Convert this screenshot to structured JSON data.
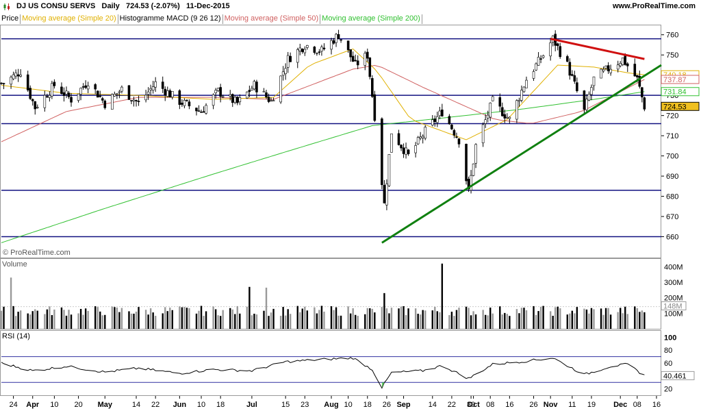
{
  "header": {
    "title": "DJ US CONSU SERVS   Daily   724.53 (-2.07%)   11-Dec-2015",
    "brand": "www.ProRealTime.com",
    "watermark": "© ProRealTime.com"
  },
  "legend": [
    {
      "label": "Price",
      "color": "#000000"
    },
    {
      "label": "Moving average (Simple 20)",
      "color": "#e0b000"
    },
    {
      "label": "Histogramme MACD (9 26 12)",
      "color": "#000000"
    },
    {
      "label": "Moving average (Simple 50)",
      "color": "#d06060"
    },
    {
      "label": "Moving average (Simple 200)",
      "color": "#30c030"
    }
  ],
  "chart_data": [
    {
      "type": "candlestick",
      "panel": "price",
      "ylim": [
        650,
        765
      ],
      "yticks": [
        660,
        670,
        680,
        690,
        700,
        710,
        720,
        730,
        740,
        750,
        760
      ],
      "current_price": 724.53,
      "value_tags": [
        {
          "value": 740.18,
          "color": "#e0b000"
        },
        {
          "value": 737.87,
          "color": "#d06060"
        },
        {
          "value": 731.84,
          "color": "#30c030"
        },
        {
          "value": 724.53,
          "color": "#000000"
        }
      ],
      "x_range": [
        "2015-03-19",
        "2015-12-18"
      ],
      "horizontal_lines": [
        758,
        730,
        716,
        683,
        660
      ],
      "trendlines": [
        {
          "color": "#d01010",
          "from": [
            "2015-11-02",
            758
          ],
          "to": [
            "2015-12-11",
            748
          ]
        },
        {
          "color": "#108010",
          "from": [
            "2015-08-24",
            657
          ],
          "to": [
            "2015-12-18",
            745
          ]
        }
      ],
      "ohlc_keypoints": [
        [
          "2015-03-20",
          736
        ],
        [
          "2015-03-27",
          742
        ],
        [
          "2015-04-02",
          724
        ],
        [
          "2015-04-10",
          735
        ],
        [
          "2015-04-17",
          728
        ],
        [
          "2015-04-24",
          737
        ],
        [
          "2015-05-01",
          726
        ],
        [
          "2015-05-08",
          733
        ],
        [
          "2015-05-15",
          726
        ],
        [
          "2015-05-22",
          736
        ],
        [
          "2015-06-01",
          727
        ],
        [
          "2015-06-10",
          722
        ],
        [
          "2015-06-17",
          732
        ],
        [
          "2015-06-25",
          726
        ],
        [
          "2015-07-02",
          735
        ],
        [
          "2015-07-09",
          727
        ],
        [
          "2015-07-16",
          748
        ],
        [
          "2015-07-23",
          755
        ],
        [
          "2015-07-30",
          752
        ],
        [
          "2015-08-06",
          760
        ],
        [
          "2015-08-13",
          745
        ],
        [
          "2015-08-18",
          750
        ],
        [
          "2015-08-21",
          720
        ],
        [
          "2015-08-25",
          676
        ],
        [
          "2015-08-28",
          712
        ],
        [
          "2015-09-04",
          700
        ],
        [
          "2015-09-11",
          712
        ],
        [
          "2015-09-18",
          722
        ],
        [
          "2015-09-25",
          708
        ],
        [
          "2015-09-29",
          682
        ],
        [
          "2015-10-02",
          705
        ],
        [
          "2015-10-09",
          727
        ],
        [
          "2015-10-16",
          718
        ],
        [
          "2015-10-23",
          738
        ],
        [
          "2015-10-30",
          750
        ],
        [
          "2015-11-03",
          758
        ],
        [
          "2015-11-09",
          745
        ],
        [
          "2015-11-16",
          722
        ],
        [
          "2015-11-20",
          738
        ],
        [
          "2015-11-27",
          744
        ],
        [
          "2015-12-02",
          748
        ],
        [
          "2015-12-08",
          738
        ],
        [
          "2015-12-11",
          724.53
        ]
      ],
      "moving_averages": {
        "sma20": [
          [
            "2015-03-19",
            735
          ],
          [
            "2015-04-15",
            731
          ],
          [
            "2015-05-15",
            730
          ],
          [
            "2015-06-15",
            728
          ],
          [
            "2015-07-10",
            729
          ],
          [
            "2015-07-25",
            745
          ],
          [
            "2015-08-12",
            753
          ],
          [
            "2015-08-22",
            742
          ],
          [
            "2015-09-05",
            718
          ],
          [
            "2015-09-28",
            708
          ],
          [
            "2015-10-15",
            718
          ],
          [
            "2015-11-05",
            745
          ],
          [
            "2015-11-20",
            744
          ],
          [
            "2015-12-05",
            741
          ],
          [
            "2015-12-11",
            740.18
          ]
        ],
        "sma50": [
          [
            "2015-03-19",
            707
          ],
          [
            "2015-04-15",
            722
          ],
          [
            "2015-05-15",
            729
          ],
          [
            "2015-06-15",
            729
          ],
          [
            "2015-07-10",
            728
          ],
          [
            "2015-08-12",
            743
          ],
          [
            "2015-08-22",
            745
          ],
          [
            "2015-09-10",
            734
          ],
          [
            "2015-10-10",
            718
          ],
          [
            "2015-10-25",
            716
          ],
          [
            "2015-11-15",
            722
          ],
          [
            "2015-12-11",
            737.87
          ]
        ],
        "sma200": [
          [
            "2015-03-19",
            657
          ],
          [
            "2015-05-01",
            674
          ],
          [
            "2015-06-15",
            691
          ],
          [
            "2015-07-15",
            702
          ],
          [
            "2015-08-20",
            715
          ],
          [
            "2015-09-20",
            719
          ],
          [
            "2015-10-20",
            723
          ],
          [
            "2015-11-20",
            728
          ],
          [
            "2015-12-11",
            731.84
          ]
        ]
      }
    },
    {
      "type": "bar",
      "panel": "volume",
      "title": "Volume",
      "ylim": [
        0,
        450
      ],
      "yticks": [
        100,
        200,
        300,
        400
      ],
      "ytick_labels": [
        "100M",
        "200M",
        "300M",
        "400M"
      ],
      "current_value_label": "148M",
      "spikes": [
        [
          "2015-03-23",
          330
        ],
        [
          "2015-06-30",
          270
        ],
        [
          "2015-07-07",
          265
        ],
        [
          "2015-08-25",
          230
        ],
        [
          "2015-09-18",
          420
        ]
      ],
      "typical": 110
    },
    {
      "type": "line",
      "panel": "rsi",
      "title": "RSI (14)",
      "ylim": [
        10,
        110
      ],
      "yticks": [
        20,
        40,
        60,
        80,
        100
      ],
      "bands": [
        30,
        70
      ],
      "current_value": 40.461,
      "keypoints": [
        [
          "2015-03-19",
          60
        ],
        [
          "2015-04-01",
          48
        ],
        [
          "2015-04-15",
          55
        ],
        [
          "2015-05-01",
          46
        ],
        [
          "2015-05-15",
          52
        ],
        [
          "2015-06-01",
          44
        ],
        [
          "2015-06-15",
          50
        ],
        [
          "2015-07-01",
          48
        ],
        [
          "2015-07-15",
          62
        ],
        [
          "2015-08-01",
          66
        ],
        [
          "2015-08-12",
          68
        ],
        [
          "2015-08-20",
          50
        ],
        [
          "2015-08-24",
          22
        ],
        [
          "2015-08-28",
          45
        ],
        [
          "2015-09-10",
          48
        ],
        [
          "2015-09-18",
          56
        ],
        [
          "2015-09-29",
          36
        ],
        [
          "2015-10-09",
          58
        ],
        [
          "2015-10-23",
          63
        ],
        [
          "2015-11-03",
          68
        ],
        [
          "2015-11-16",
          42
        ],
        [
          "2015-11-27",
          55
        ],
        [
          "2015-12-04",
          58
        ],
        [
          "2015-12-11",
          40.461
        ]
      ]
    }
  ],
  "x_axis": {
    "ticks": [
      {
        "date": "2015-03-24",
        "label": "24",
        "bold": false
      },
      {
        "date": "2015-04-01",
        "label": "Apr",
        "bold": true
      },
      {
        "date": "2015-04-10",
        "label": "10",
        "bold": false
      },
      {
        "date": "2015-04-20",
        "label": "20",
        "bold": false
      },
      {
        "date": "2015-05-01",
        "label": "May",
        "bold": true
      },
      {
        "date": "2015-05-14",
        "label": "14",
        "bold": false
      },
      {
        "date": "2015-05-22",
        "label": "22",
        "bold": false
      },
      {
        "date": "2015-06-01",
        "label": "Jun",
        "bold": true
      },
      {
        "date": "2015-06-10",
        "label": "10",
        "bold": false
      },
      {
        "date": "2015-06-18",
        "label": "18",
        "bold": false
      },
      {
        "date": "2015-07-01",
        "label": "Jul",
        "bold": true
      },
      {
        "date": "2015-07-15",
        "label": "15",
        "bold": false
      },
      {
        "date": "2015-07-23",
        "label": "23",
        "bold": false
      },
      {
        "date": "2015-08-03",
        "label": "Aug",
        "bold": true
      },
      {
        "date": "2015-08-10",
        "label": "10",
        "bold": false
      },
      {
        "date": "2015-08-18",
        "label": "18",
        "bold": false
      },
      {
        "date": "2015-08-26",
        "label": "26",
        "bold": false
      },
      {
        "date": "2015-09-02",
        "label": "Sep",
        "bold": true
      },
      {
        "date": "2015-09-14",
        "label": "14",
        "bold": false
      },
      {
        "date": "2015-09-22",
        "label": "22",
        "bold": false
      },
      {
        "date": "2015-09-30",
        "label": "30",
        "bold": false
      },
      {
        "date": "2015-10-01",
        "label": "Oct",
        "bold": true
      },
      {
        "date": "2015-10-08",
        "label": "08",
        "bold": false
      },
      {
        "date": "2015-10-16",
        "label": "16",
        "bold": false
      },
      {
        "date": "2015-10-26",
        "label": "26",
        "bold": false
      },
      {
        "date": "2015-11-02",
        "label": "Nov",
        "bold": true
      },
      {
        "date": "2015-11-11",
        "label": "11",
        "bold": false
      },
      {
        "date": "2015-11-19",
        "label": "19",
        "bold": false
      },
      {
        "date": "2015-12-01",
        "label": "Dec",
        "bold": true
      },
      {
        "date": "2015-12-08",
        "label": "08",
        "bold": false
      },
      {
        "date": "2015-12-16",
        "label": "16",
        "bold": false
      }
    ]
  }
}
